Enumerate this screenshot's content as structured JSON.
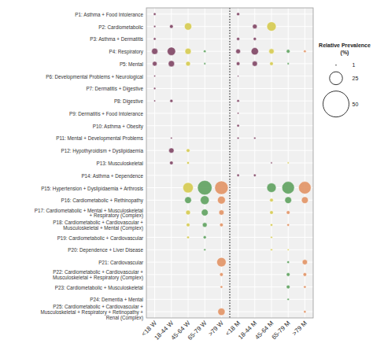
{
  "chart_data": {
    "type": "bubble",
    "categories": [
      "<18 W",
      "18-44 W",
      "45-64 W",
      "65-79 W",
      ">79 W",
      "<18 M",
      "18-44 M",
      "45-64 M",
      "65-79 M",
      ">79 M"
    ],
    "y_categories": [
      "P1: Asthma + Food Intolerance",
      "P2: Cardiometabolic",
      "P3: Asthma + Dermatitis",
      "P4: Respiratory",
      "P5: Mental",
      "P6: Developmental Problems + Neurological",
      "P7: Dermatitis + Digestive",
      "P8: Digestive",
      "P9: Dermatitis + Food Intolerance",
      "P10: Asthma + Obesity",
      "P11: Mental + Developmental Problems",
      "P12: Hypothyroidism + Dyslipidaemia",
      "P13: Musculoskeletal",
      "P14: Asthma + Dependence",
      "P15: Hypertension + Dyslipidaemia + Arthrosis",
      "P16: Cardiometabolic + Rethinopathy",
      "P17: Cardiometabolic + Mental + Musculoskeletal\n+ Respiratory (Complex)",
      "P18: Cardiometabolic + Cardiovascular +\nMusculoskeletal + Mental (Complex)",
      "P19: Cardiometabolic + Cardiovascular",
      "P20: Dependence + Liver Disease",
      "P21: Cardiovascular",
      "P22: Cardiometabolic + Cardiovascular +\nMusculoskeletal + Respiratory (Complex)",
      "P23: Cardiometabolic + Musculoskeletal",
      "P24: Dementia + Mental",
      "P25: Cardiometabolic + Cardiovascular +\nMusculoskeletal + Respiratory + Retinopathy +\nRenal (Complex)"
    ],
    "sizes": [
      [
        5,
        null,
        null,
        null,
        null,
        6,
        null,
        null,
        null,
        null
      ],
      [
        4,
        7,
        14,
        null,
        null,
        null,
        9,
        18,
        null,
        null
      ],
      [
        5,
        null,
        null,
        null,
        null,
        6,
        6,
        null,
        null,
        null
      ],
      [
        12,
        16,
        12,
        5,
        null,
        9,
        14,
        10,
        7,
        5
      ],
      [
        9,
        12,
        9,
        4,
        null,
        7,
        10,
        7,
        4,
        null
      ],
      [
        3.5,
        null,
        null,
        null,
        null,
        3,
        null,
        null,
        null,
        null
      ],
      [
        4,
        null,
        null,
        null,
        null,
        null,
        null,
        null,
        null,
        null
      ],
      [
        3.5,
        6,
        null,
        null,
        null,
        5,
        null,
        null,
        null,
        null
      ],
      [
        null,
        null,
        null,
        null,
        null,
        3.5,
        null,
        null,
        null,
        null
      ],
      [
        null,
        null,
        null,
        null,
        null,
        5,
        null,
        null,
        null,
        null
      ],
      [
        null,
        3.5,
        null,
        null,
        null,
        4,
        4,
        null,
        null,
        null
      ],
      [
        null,
        10,
        7,
        null,
        null,
        null,
        null,
        null,
        null,
        null
      ],
      [
        null,
        7,
        5,
        null,
        null,
        null,
        null,
        3.5,
        3.5,
        null
      ],
      [
        null,
        null,
        null,
        null,
        null,
        5,
        5,
        null,
        null,
        null
      ],
      [
        null,
        null,
        20,
        28,
        26,
        null,
        null,
        18,
        24,
        24
      ],
      [
        null,
        null,
        13,
        17,
        15,
        null,
        null,
        7,
        13,
        13
      ],
      [
        null,
        null,
        9,
        13,
        10,
        null,
        null,
        7,
        7,
        null
      ],
      [
        null,
        null,
        7,
        9,
        7,
        null,
        null,
        5,
        5,
        null
      ],
      [
        null,
        null,
        5,
        6,
        null,
        null,
        null,
        4,
        null,
        null
      ],
      [
        null,
        null,
        null,
        4,
        null,
        null,
        null,
        4,
        3.5,
        null
      ],
      [
        null,
        null,
        null,
        null,
        18,
        null,
        null,
        null,
        5,
        10
      ],
      [
        null,
        null,
        null,
        null,
        7,
        null,
        null,
        null,
        7,
        7
      ],
      [
        null,
        null,
        null,
        null,
        5,
        null,
        null,
        null,
        7,
        5
      ],
      [
        null,
        null,
        null,
        null,
        null,
        null,
        null,
        null,
        4,
        null
      ],
      [
        null,
        null,
        null,
        null,
        14,
        null,
        null,
        null,
        null,
        5
      ]
    ],
    "colors": [
      [
        "#7b3f5e",
        null,
        null,
        null,
        null,
        "#7b3f5e",
        null,
        null,
        null,
        null
      ],
      [
        "#7b3f5e",
        "#7b3f5e",
        "#d4c84a",
        null,
        null,
        null,
        "#7b3f5e",
        "#d4c84a",
        null,
        null
      ],
      [
        "#7b3f5e",
        null,
        null,
        null,
        null,
        "#7b3f5e",
        "#7b3f5e",
        null,
        null,
        null
      ],
      [
        "#7b3f5e",
        "#7b3f5e",
        "#d4c84a",
        "#5a9e5a",
        null,
        "#7b3f5e",
        "#7b3f5e",
        "#d4c84a",
        "#5a9e5a",
        "#e09060"
      ],
      [
        "#7b3f5e",
        "#7b3f5e",
        "#d4c84a",
        "#5a9e5a",
        null,
        "#7b3f5e",
        "#7b3f5e",
        "#d4c84a",
        "#5a9e5a",
        null
      ],
      [
        "#7b3f5e",
        null,
        null,
        null,
        null,
        "#7b3f5e",
        null,
        null,
        null,
        null
      ],
      [
        "#7b3f5e",
        null,
        null,
        null,
        null,
        null,
        null,
        null,
        null,
        null
      ],
      [
        "#7b3f5e",
        "#7b3f5e",
        null,
        null,
        null,
        "#7b3f5e",
        null,
        null,
        null,
        null
      ],
      [
        null,
        null,
        null,
        null,
        null,
        "#7b3f5e",
        null,
        null,
        null,
        null
      ],
      [
        null,
        null,
        null,
        null,
        null,
        "#7b3f5e",
        null,
        null,
        null,
        null
      ],
      [
        null,
        "#7b3f5e",
        null,
        null,
        null,
        "#7b3f5e",
        "#7b3f5e",
        null,
        null,
        null
      ],
      [
        null,
        "#7b3f5e",
        "#d4c84a",
        null,
        null,
        null,
        null,
        null,
        null,
        null
      ],
      [
        null,
        "#7b3f5e",
        "#d4c84a",
        null,
        null,
        null,
        null,
        "#7b3f5e",
        "#d4c84a",
        null
      ],
      [
        null,
        null,
        null,
        null,
        null,
        "#7b3f5e",
        "#7b3f5e",
        null,
        null,
        null
      ],
      [
        null,
        null,
        "#d4c84a",
        "#5a9e5a",
        "#e09060",
        null,
        null,
        "#5a9e5a",
        "#5a9e5a",
        "#e09060"
      ],
      [
        null,
        null,
        "#5a9e5a",
        "#5a9e5a",
        "#e09060",
        null,
        null,
        "#d4c84a",
        "#5a9e5a",
        "#e09060"
      ],
      [
        null,
        null,
        "#d4c84a",
        "#5a9e5a",
        "#e09060",
        null,
        null,
        "#d4c84a",
        "#e09060",
        null
      ],
      [
        null,
        null,
        "#d4c84a",
        "#5a9e5a",
        "#e09060",
        null,
        null,
        "#d4c84a",
        "#e09060",
        null
      ],
      [
        null,
        null,
        "#d4c84a",
        "#5a9e5a",
        null,
        null,
        null,
        "#d4c84a",
        null,
        null
      ],
      [
        null,
        null,
        null,
        "#5a9e5a",
        null,
        null,
        null,
        "#d4c84a",
        "#d4c84a",
        null
      ],
      [
        null,
        null,
        null,
        null,
        "#e09060",
        null,
        null,
        null,
        "#5a9e5a",
        "#e09060"
      ],
      [
        null,
        null,
        null,
        null,
        "#e09060",
        null,
        null,
        null,
        "#5a9e5a",
        "#e09060"
      ],
      [
        null,
        null,
        null,
        null,
        "#e09060",
        null,
        null,
        null,
        "#5a9e5a",
        "#e09060"
      ],
      [
        null,
        null,
        null,
        null,
        null,
        null,
        null,
        null,
        "#5a9e5a",
        null
      ],
      [
        null,
        null,
        null,
        null,
        "#e09060",
        null,
        null,
        null,
        null,
        "#e09060"
      ]
    ],
    "grid": true,
    "legend_title": "Relative Prevalence (%)",
    "legend_sizes": [
      1,
      25,
      50
    ]
  }
}
